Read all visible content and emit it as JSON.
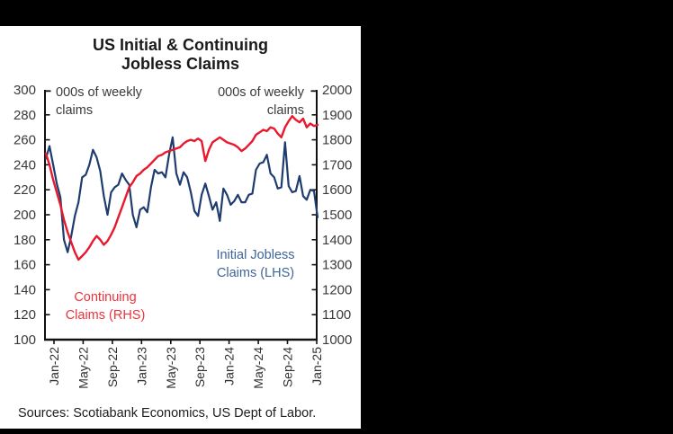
{
  "page": {
    "background_color": "#000000",
    "card_color": "#ffffff"
  },
  "source_note": "Sources: Scotiabank Economics, US Dept of Labor.",
  "chart_data": {
    "type": "line",
    "title": "US Initial & Continuing Jobless Claims",
    "title_display": "US Initial & Continuing\nJobless Claims",
    "frequency": "biweekly",
    "x_start": "Jan-2022",
    "x_end": "Feb-2025",
    "x_axis": {
      "tick_labels": [
        "Jan-22",
        "May-22",
        "Sep-22",
        "Jan-23",
        "May-23",
        "Sep-23",
        "Jan-24",
        "May-24",
        "Sep-24",
        "Jan-25"
      ]
    },
    "left_axis": {
      "units_label": "000s of weekly\nclaims",
      "min": 100,
      "max": 300,
      "tick_step": 20,
      "ticks": [
        300,
        280,
        260,
        240,
        220,
        200,
        180,
        160,
        140,
        120,
        100
      ]
    },
    "right_axis": {
      "units_label": "000s of weekly\nclaims",
      "min": 1000,
      "max": 2000,
      "tick_step": 100,
      "ticks": [
        2000,
        1900,
        1800,
        1700,
        1600,
        1500,
        1400,
        1300,
        1200,
        1100,
        1000
      ]
    },
    "annotations": {
      "initial_label": "Initial Jobless\nClaims (LHS)",
      "initial_label_color": "#3f6597",
      "continuing_label": "Continuing\nClaims (RHS)",
      "continuing_label_color": "#ee333c"
    },
    "series": [
      {
        "name": "Initial Jobless Claims (LHS)",
        "axis": "left",
        "color": "#1e3d6e",
        "values": [
          245,
          255,
          240,
          225,
          214,
          180,
          170,
          183,
          199,
          210,
          230,
          232,
          240,
          252,
          246,
          235,
          215,
          200,
          218,
          222,
          224,
          233,
          228,
          224,
          200,
          190,
          204,
          206,
          202,
          222,
          236,
          233,
          234,
          230,
          248,
          262,
          233,
          224,
          234,
          230,
          218,
          203,
          199,
          216,
          225,
          215,
          204,
          210,
          195,
          221,
          216,
          208,
          211,
          216,
          210,
          210,
          216,
          217,
          236,
          241,
          242,
          248,
          233,
          230,
          221,
          222,
          258,
          223,
          218,
          219,
          231,
          215,
          212,
          220,
          219,
          198
        ]
      },
      {
        "name": "Continuing Claims (RHS)",
        "axis": "right",
        "color": "#e8182d",
        "values": [
          1745,
          1700,
          1640,
          1590,
          1540,
          1480,
          1430,
          1390,
          1350,
          1320,
          1335,
          1350,
          1370,
          1395,
          1415,
          1400,
          1380,
          1395,
          1420,
          1450,
          1490,
          1530,
          1570,
          1610,
          1630,
          1655,
          1665,
          1680,
          1690,
          1705,
          1720,
          1735,
          1740,
          1750,
          1755,
          1760,
          1765,
          1770,
          1785,
          1795,
          1800,
          1795,
          1805,
          1795,
          1715,
          1760,
          1790,
          1800,
          1810,
          1800,
          1790,
          1785,
          1780,
          1770,
          1755,
          1765,
          1780,
          1795,
          1820,
          1830,
          1840,
          1835,
          1850,
          1845,
          1825,
          1810,
          1850,
          1875,
          1895,
          1880,
          1870,
          1885,
          1850,
          1865,
          1855,
          1860
        ]
      }
    ]
  }
}
